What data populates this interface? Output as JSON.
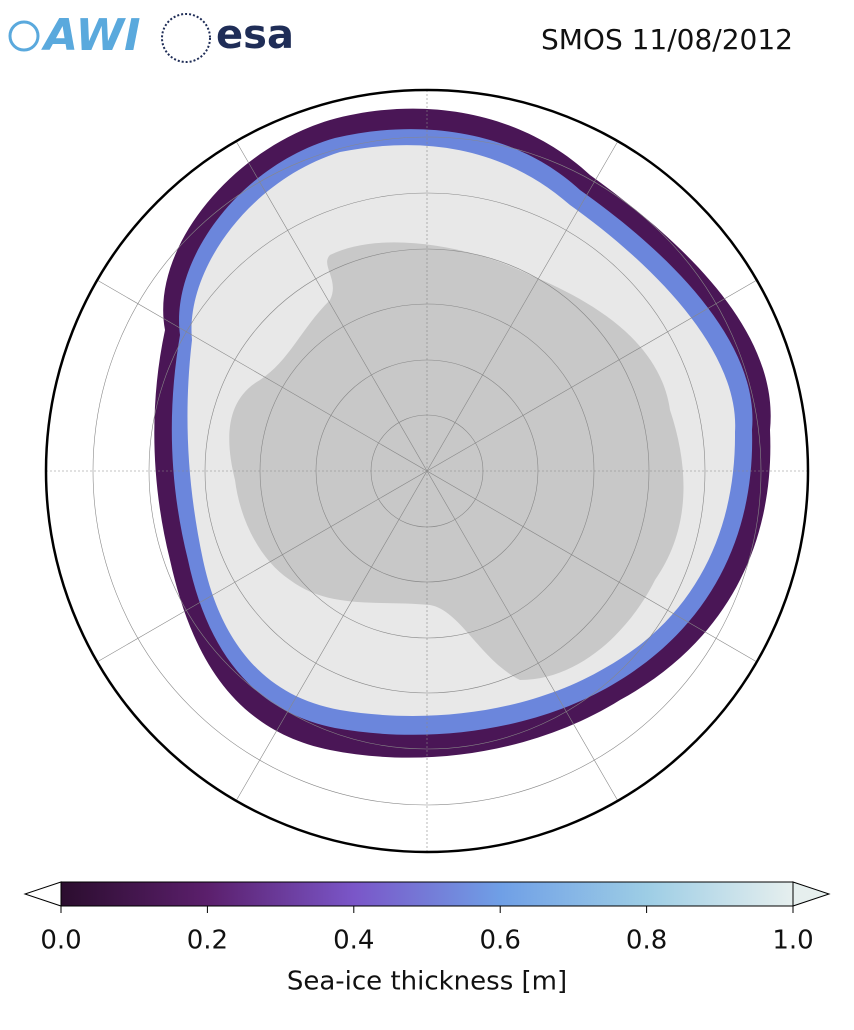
{
  "header": {
    "title": "SMOS 11/08/2012",
    "logos": [
      "AWI",
      "esa"
    ]
  },
  "colorbar": {
    "label": "Sea-ice thickness [m]",
    "range": [
      0,
      1
    ],
    "ticks": [
      {
        "value": 0,
        "label": "0.0"
      },
      0.2,
      0.4,
      0.6,
      0.8,
      {
        "value": 1,
        "label": "1.0"
      }
    ],
    "colors": [
      "#2b0d2e",
      "#5b1f6c",
      "#7a56c8",
      "#6f9fe6",
      "#9dcde5",
      "#e6efee"
    ]
  }
}
